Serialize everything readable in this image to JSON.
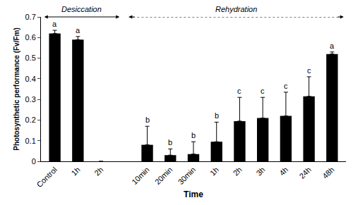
{
  "chart_data": {
    "type": "bar",
    "categories": [
      "Control",
      "1h",
      "2h",
      null,
      "10min",
      "20min",
      "30min",
      "1h",
      "2h",
      "3h",
      "4h",
      "24h",
      "48h"
    ],
    "values": [
      0.62,
      0.59,
      0,
      null,
      0.08,
      0.03,
      0.035,
      0.095,
      0.195,
      0.21,
      0.22,
      0.315,
      0.52
    ],
    "errors": [
      0.015,
      0.015,
      0,
      null,
      0.09,
      0.03,
      0.06,
      0.095,
      0.115,
      0.1,
      0.115,
      0.095,
      0.01
    ],
    "letters": [
      "a",
      "a",
      null,
      null,
      "b",
      "b",
      "b",
      "b",
      "c",
      "c",
      "c",
      "c",
      "a"
    ],
    "annotations": [
      "Desiccation",
      "Rehydration"
    ],
    "color": "#000000",
    "x_label": "Time",
    "y_label": "Photosynthetic performance (Fv/Fm)",
    "ylim": [
      0,
      0.7
    ],
    "yticks": [
      0,
      0.1,
      0.2,
      0.3,
      0.4,
      0.5,
      0.6,
      0.7
    ],
    "grid": false
  }
}
